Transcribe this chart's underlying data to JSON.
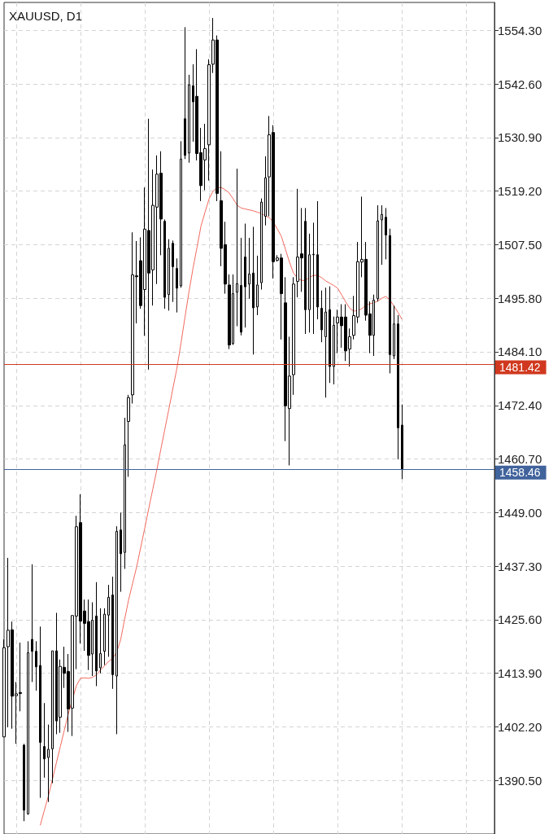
{
  "chart_data": {
    "type": "candlestick",
    "title": "XAUUSD, D1",
    "categories": [
      null,
      null,
      null,
      null,
      null,
      null,
      null,
      null,
      null,
      null,
      null,
      null,
      null,
      null,
      null,
      null,
      null,
      null,
      null,
      null,
      null,
      null,
      null,
      null,
      null,
      null,
      null,
      null,
      null,
      null,
      null,
      null,
      null,
      null,
      null,
      null,
      null,
      null,
      null,
      null,
      null,
      null,
      null,
      null,
      null,
      null,
      null,
      null,
      null,
      null,
      null,
      null,
      null,
      null,
      null,
      null,
      null,
      null,
      null,
      null,
      null,
      null,
      null,
      null,
      null,
      null,
      null,
      null,
      null,
      null,
      null,
      null,
      null,
      null,
      null,
      null,
      null,
      null,
      null,
      null,
      null,
      null,
      null,
      null,
      null,
      null,
      null,
      null,
      null,
      null,
      null,
      null,
      null,
      null,
      null,
      null,
      null,
      null,
      null,
      null,
      null,
      null,
      null,
      null,
      null,
      null,
      null,
      null,
      null,
      null,
      null,
      null,
      null,
      null,
      null,
      null,
      null,
      null,
      null,
      null,
      null,
      null,
      null
    ],
    "ohlc": [
      [
        1400.0,
        1421.3,
        1400.0,
        1419.5
      ],
      [
        1419.7,
        1439.1,
        1402.1,
        1423.3
      ],
      [
        1423.4,
        1425.2,
        1401.8,
        1408.9
      ],
      [
        1409.0,
        1412.0,
        1398.5,
        1409.4
      ],
      [
        1409.7,
        1420.6,
        1405.6,
        1409.5
      ],
      [
        1398.2,
        1398.5,
        1381.6,
        1384.0
      ],
      [
        1383.2,
        1420.9,
        1383.0,
        1418.4
      ],
      [
        1421.3,
        1437.7,
        1412.0,
        1418.7
      ],
      [
        1418.7,
        1420.9,
        1410.1,
        1415.3
      ],
      [
        1415.6,
        1424.1,
        1386.7,
        1398.8
      ],
      [
        1397.9,
        1407.4,
        1391.1,
        1395.2
      ],
      [
        1395.5,
        1402.7,
        1385.8,
        1397.3
      ],
      [
        1397.4,
        1418.8,
        1389.9,
        1418.8
      ],
      [
        1418.8,
        1427.1,
        1400.6,
        1403.5
      ],
      [
        1404.3,
        1416.9,
        1400.9,
        1415.4
      ],
      [
        1415.2,
        1419.7,
        1410.7,
        1413.9
      ],
      [
        1414.3,
        1418.1,
        1401.1,
        1406.1
      ],
      [
        1406.3,
        1426.6,
        1400.2,
        1426.5
      ],
      [
        1426.4,
        1448.3,
        1414.8,
        1445.9
      ],
      [
        1446.8,
        1453.0,
        1420.4,
        1425.3
      ],
      [
        1427.5,
        1430.0,
        1418.8,
        1424.8
      ],
      [
        1425.2,
        1430.0,
        1414.6,
        1417.8
      ],
      [
        1418.1,
        1429.4,
        1413.3,
        1425.5
      ],
      [
        1426.4,
        1433.8,
        1411.1,
        1414.4
      ],
      [
        1415.1,
        1428.1,
        1413.9,
        1418.2
      ],
      [
        1418.7,
        1428.1,
        1415.7,
        1426.8
      ],
      [
        1426.6,
        1433.2,
        1417.5,
        1430.5
      ],
      [
        1431.0,
        1435.0,
        1410.5,
        1413.6
      ],
      [
        1413.3,
        1446.0,
        1400.6,
        1444.9
      ],
      [
        1445.2,
        1449.0,
        1431.7,
        1440.0
      ],
      [
        1440.3,
        1469.7,
        1436.7,
        1463.8
      ],
      [
        1468.9,
        1474.7,
        1456.8,
        1474.1
      ],
      [
        1474.7,
        1510.2,
        1472.8,
        1500.9
      ],
      [
        1500.7,
        1508.3,
        1490.3,
        1500.5
      ],
      [
        1504.0,
        1509.1,
        1493.5,
        1494.2
      ],
      [
        1497.7,
        1520.0,
        1487.6,
        1510.9
      ],
      [
        1510.6,
        1535.0,
        1480.2,
        1501.3
      ],
      [
        1502.0,
        1523.9,
        1494.2,
        1516.1
      ],
      [
        1515.7,
        1527.0,
        1498.9,
        1522.9
      ],
      [
        1523.1,
        1527.9,
        1505.2,
        1513.1
      ],
      [
        1512.6,
        1513.0,
        1493.5,
        1496.0
      ],
      [
        1496.6,
        1508.7,
        1493.1,
        1506.7
      ],
      [
        1507.8,
        1508.4,
        1495.0,
        1502.7
      ],
      [
        1502.3,
        1504.5,
        1492.7,
        1498.0
      ],
      [
        1498.5,
        1530.1,
        1498.1,
        1526.2
      ],
      [
        1535.0,
        1555.0,
        1526.2,
        1527.0
      ],
      [
        1527.5,
        1544.6,
        1525.4,
        1542.4
      ],
      [
        1542.2,
        1546.9,
        1530.0,
        1538.7
      ],
      [
        1539.9,
        1550.2,
        1525.9,
        1527.4
      ],
      [
        1527.6,
        1533.0,
        1517.0,
        1520.4
      ],
      [
        1526.0,
        1533.9,
        1519.4,
        1528.5
      ],
      [
        1529.3,
        1548.0,
        1521.5,
        1546.8
      ],
      [
        1546.9,
        1557.0,
        1545.0,
        1552.2
      ],
      [
        1552.2,
        1553.2,
        1517.0,
        1518.7
      ],
      [
        1517.1,
        1527.9,
        1502.8,
        1506.7
      ],
      [
        1507.5,
        1512.5,
        1496.8,
        1498.9
      ],
      [
        1498.7,
        1501.0,
        1484.7,
        1485.6
      ],
      [
        1485.9,
        1501.0,
        1485.6,
        1496.8
      ],
      [
        1497.1,
        1524.1,
        1489.7,
        1499.0
      ],
      [
        1498.6,
        1509.0,
        1487.7,
        1488.4
      ],
      [
        1504.8,
        1512.1,
        1489.4,
        1498.3
      ],
      [
        1498.9,
        1509.0,
        1495.7,
        1501.1
      ],
      [
        1501.3,
        1511.4,
        1483.5,
        1493.7
      ],
      [
        1493.9,
        1505.1,
        1492.1,
        1498.7
      ],
      [
        1499.2,
        1517.6,
        1497.7,
        1516.8
      ],
      [
        1513.7,
        1526.8,
        1511.7,
        1522.1
      ],
      [
        1522.3,
        1535.6,
        1513.7,
        1531.5
      ],
      [
        1532.0,
        1533.6,
        1500.1,
        1503.8
      ],
      [
        1504.1,
        1505.2,
        1503.8,
        1504.6
      ],
      [
        1504.6,
        1505.5,
        1486.8,
        1496.8
      ],
      [
        1494.8,
        1500.4,
        1464.6,
        1472.3
      ],
      [
        1471.7,
        1487.4,
        1459.3,
        1478.8
      ],
      [
        1479.1,
        1500.4,
        1474.7,
        1498.9
      ],
      [
        1499.5,
        1519.7,
        1496.0,
        1504.8
      ],
      [
        1505.5,
        1515.5,
        1497.2,
        1504.6
      ],
      [
        1512.6,
        1515.5,
        1488.0,
        1493.3
      ],
      [
        1493.3,
        1509.9,
        1488.3,
        1505.3
      ],
      [
        1505.3,
        1512.3,
        1488.0,
        1505.4
      ],
      [
        1505.3,
        1517.0,
        1491.2,
        1493.9
      ],
      [
        1493.6,
        1497.5,
        1486.2,
        1488.9
      ],
      [
        1487.4,
        1498.1,
        1474.1,
        1492.8
      ],
      [
        1493.3,
        1498.4,
        1477.3,
        1480.9
      ],
      [
        1480.9,
        1491.8,
        1477.0,
        1489.9
      ],
      [
        1490.4,
        1493.3,
        1483.8,
        1491.7
      ],
      [
        1491.7,
        1494.5,
        1485.0,
        1489.8
      ],
      [
        1491.7,
        1494.5,
        1482.1,
        1484.3
      ],
      [
        1484.7,
        1489.2,
        1480.9,
        1487.4
      ],
      [
        1487.7,
        1496.3,
        1486.8,
        1492.0
      ],
      [
        1491.7,
        1508.1,
        1490.4,
        1503.8
      ],
      [
        1503.7,
        1518.0,
        1500.4,
        1504.3
      ],
      [
        1504.3,
        1508.1,
        1490.9,
        1492.1
      ],
      [
        1492.4,
        1495.1,
        1483.8,
        1487.7
      ],
      [
        1487.7,
        1496.6,
        1483.2,
        1495.4
      ],
      [
        1495.7,
        1516.1,
        1495.1,
        1512.7
      ],
      [
        1512.9,
        1516.1,
        1503.1,
        1514.1
      ],
      [
        1513.5,
        1515.5,
        1504.3,
        1509.6
      ],
      [
        1509.5,
        1511.0,
        1479.4,
        1483.5
      ],
      [
        1483.2,
        1494.2,
        1482.5,
        1490.2
      ],
      [
        1490.2,
        1492.1,
        1460.6,
        1467.5
      ],
      [
        1468.1,
        1472.6,
        1456.3,
        1458.46
      ],
      null,
      null,
      null,
      null,
      null,
      null,
      null,
      null,
      null,
      null,
      null,
      null,
      null,
      null,
      null,
      null,
      null,
      null,
      null,
      null,
      null,
      null,
      null
    ],
    "series": [
      {
        "type": "line",
        "color": "#f26a5e",
        "values": [
          null,
          null,
          null,
          null,
          null,
          null,
          null,
          null,
          null,
          1380.7,
          1383.9,
          1387.0,
          1390.6,
          1394.3,
          1397.9,
          1401.5,
          1405.1,
          null,
          1411.2,
          1412.8,
          1412.9,
          1412.8,
          1413.0,
          1413.6,
          1414.6,
          1415.5,
          1416.5,
          1417.1,
          1418.5,
          1421.2,
          1425.7,
          1430.0,
          1433.6,
          1437.2,
          1441.4,
          1445.6,
          1449.9,
          1454.1,
          1458.3,
          1462.8,
          1467.2,
          1471.6,
          1476.1,
          1480.5,
          1485.9,
          1491.6,
          1497.2,
          1502.3,
          1506.9,
          1511.6,
          1514.6,
          1517.5,
          1519.2,
          1519.9,
          1520.0,
          1519.5,
          1518.8,
          1517.5,
          1516.1,
          1515.5,
          1515.3,
          1515.1,
          1514.9,
          1514.6,
          1514.3,
          1513.8,
          1513.4,
          1512.4,
          1510.9,
          1509.3,
          1506.5,
          1503.7,
          1501.3,
          1500.2,
          1499.7,
          1499.7,
          1500.4,
          1500.8,
          1500.8,
          1500.3,
          1499.6,
          1499.1,
          1498.6,
          1498.0,
          1496.5,
          1495.0,
          1493.6,
          1493.0,
          1493.1,
          1493.5,
          1494.3,
          1494.6,
          1494.8,
          1495.2,
          1495.8,
          1496.2,
          1495.4,
          1494.1,
          1492.7,
          1491.2,
          null,
          null,
          null,
          null,
          null,
          null,
          null,
          null,
          null,
          null,
          null,
          null,
          null,
          null,
          null,
          null,
          null,
          null,
          null,
          null,
          null,
          null,
          null
        ]
      }
    ],
    "ylim": [
      1378.8,
      1560.4
    ],
    "yticks": [
      {
        "value": 1390.5,
        "label": "1390.50"
      },
      {
        "value": 1402.2,
        "label": "1402.20"
      },
      {
        "value": 1413.9,
        "label": "1413.90"
      },
      {
        "value": 1425.6,
        "label": "1425.60"
      },
      {
        "value": 1437.3,
        "label": "1437.30"
      },
      {
        "value": 1449.0,
        "label": "1449.00"
      },
      {
        "value": 1460.7,
        "label": "1460.70"
      },
      {
        "value": 1472.4,
        "label": "1472.40"
      },
      {
        "value": 1484.1,
        "label": "1484.10"
      },
      {
        "value": 1495.8,
        "label": "1495.80"
      },
      {
        "value": 1507.5,
        "label": "1507.50"
      },
      {
        "value": 1519.2,
        "label": "1519.20"
      },
      {
        "value": 1530.9,
        "label": "1530.90"
      },
      {
        "value": 1542.6,
        "label": "1542.60"
      },
      {
        "value": 1554.3,
        "label": "1554.30"
      }
    ],
    "ref_lines": [
      {
        "axis": "y",
        "value": 1481.42,
        "label": "1481.42",
        "color": "#d0391f"
      },
      {
        "axis": "y",
        "value": 1458.46,
        "label": "1458.46",
        "color": "#41639c"
      }
    ],
    "grid": true,
    "tick_labels": "y"
  }
}
